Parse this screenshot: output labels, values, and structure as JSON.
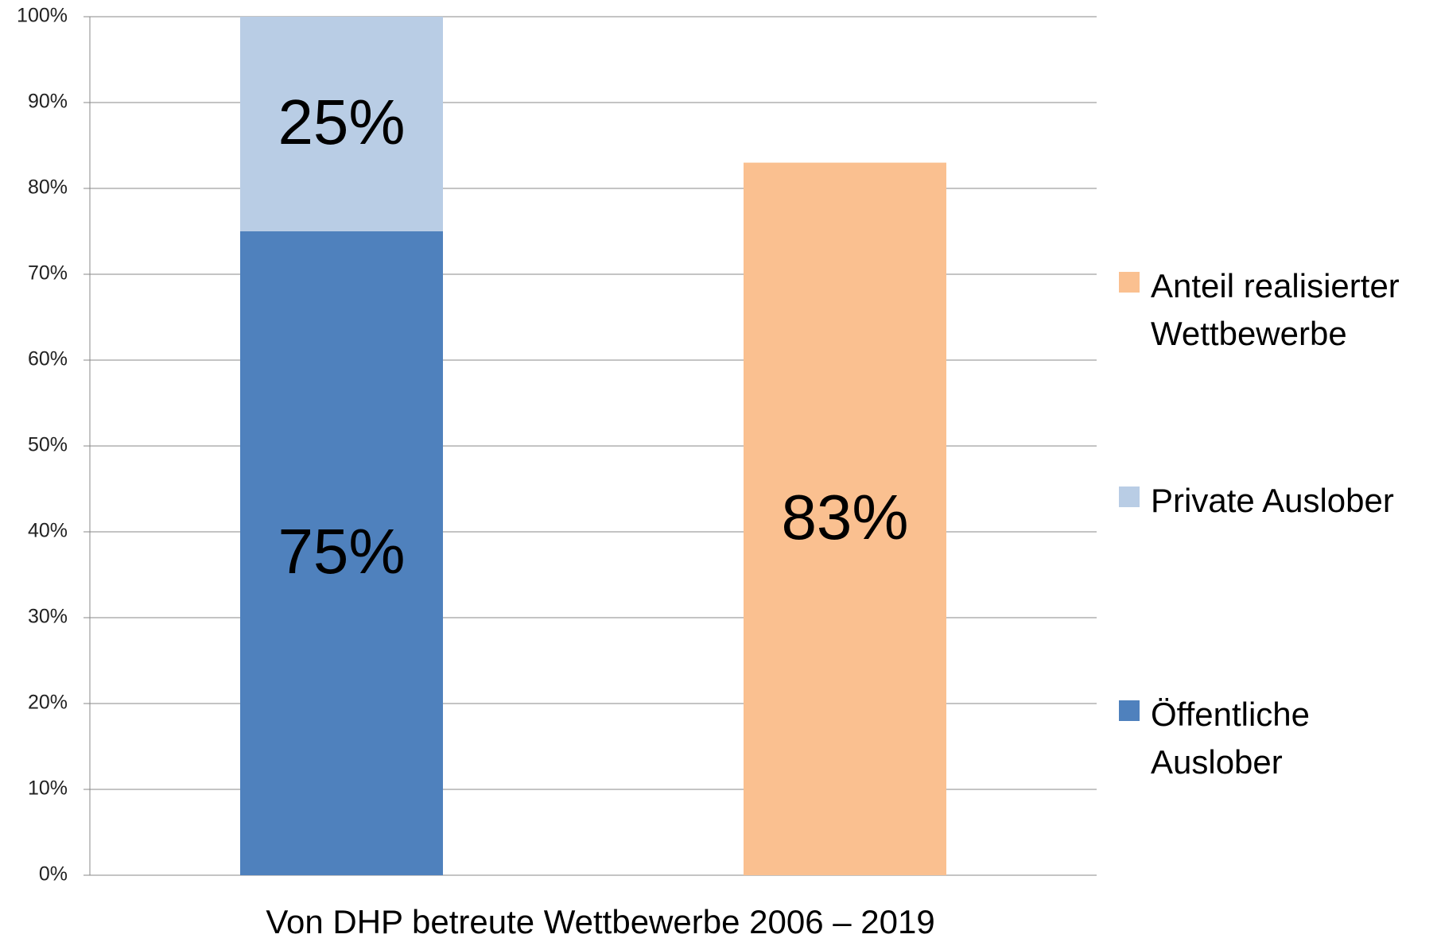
{
  "chart_data": {
    "type": "stacked_bar",
    "x_label": "Von DHP betreute Wettbewerbe  2006 – 2019",
    "categories": [
      null,
      null
    ],
    "series": [
      {
        "name": "Öffentliche Auslober",
        "color": "#4f81bd",
        "values": [
          75,
          null
        ],
        "value_labels": [
          "75%",
          null
        ]
      },
      {
        "name": "Private Auslober",
        "color": "#b9cde5",
        "values": [
          25,
          null
        ],
        "value_labels": [
          "25%",
          null
        ]
      },
      {
        "name": "Anteil realisierter Wettbewerbe",
        "color": "#fac090",
        "values": [
          null,
          83
        ],
        "value_labels": [
          null,
          "83%"
        ]
      }
    ],
    "ylim": [
      0,
      100
    ],
    "yticks": [
      {
        "value": 0,
        "label": "0%"
      },
      {
        "value": 10,
        "label": "10%"
      },
      {
        "value": 20,
        "label": "20%"
      },
      {
        "value": 30,
        "label": "30%"
      },
      {
        "value": 40,
        "label": "40%"
      },
      {
        "value": 50,
        "label": "50%"
      },
      {
        "value": 60,
        "label": "60%"
      },
      {
        "value": 70,
        "label": "70%"
      },
      {
        "value": 80,
        "label": "80%"
      },
      {
        "value": 90,
        "label": "90%"
      },
      {
        "value": 100,
        "label": "100%"
      }
    ],
    "grid": true,
    "legend": "right"
  }
}
